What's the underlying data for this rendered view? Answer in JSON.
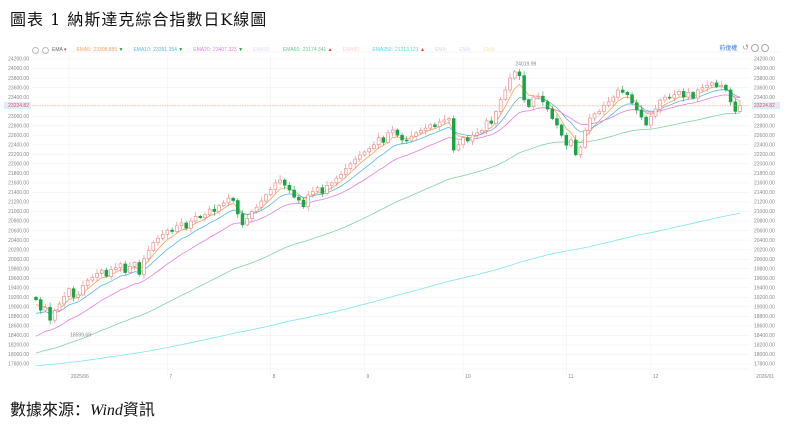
{
  "title": "圖表 1 納斯達克綜合指數日K線圖",
  "source_prefix": "數據來源：",
  "source_name": "Wind",
  "source_suffix": "資訊",
  "toolbar": {
    "adjust_label": "前復權",
    "icons": [
      "undo-icon",
      "zoom-in-icon",
      "close-icon"
    ]
  },
  "legend": {
    "prefix": "EMA",
    "items": [
      {
        "label": "EMA5:",
        "value": "23308.885",
        "trend": "down",
        "color": "#f5a35c"
      },
      {
        "label": "EMA10:",
        "value": "23391.354",
        "trend": "down",
        "color": "#58b6ea"
      },
      {
        "label": "EMA20:",
        "value": "23407.323",
        "trend": "down",
        "color": "#e77ee0"
      },
      {
        "label": "EMA30:",
        "value": "",
        "trend": "",
        "color": "#dcdcf8"
      },
      {
        "label": "EMA60:",
        "value": "23174.341",
        "trend": "up",
        "color": "#6cc993"
      },
      {
        "label": "EMA90:",
        "value": "",
        "trend": "",
        "color": "#f8d0d0"
      },
      {
        "label": "EMA250:",
        "value": "21213.121",
        "trend": "up",
        "color": "#44dcea"
      },
      {
        "label": "EMA:",
        "value": "",
        "trend": "",
        "color": "#d8d8d8"
      },
      {
        "label": "EMA:",
        "value": "",
        "trend": "",
        "color": "#dcd8f0"
      },
      {
        "label": "EMA:",
        "value": "",
        "trend": "",
        "color": "#f6e4b0"
      }
    ]
  },
  "chart_data": {
    "type": "candlestick",
    "ylim": [
      17800,
      24200
    ],
    "ytick_step": 200,
    "x_ticks": [
      "2025/06",
      "7",
      "8",
      "9",
      "10",
      "11",
      "12",
      "2026/01"
    ],
    "x_tick_index": [
      7,
      28,
      50,
      70,
      91,
      113,
      131,
      153
    ],
    "current_price": "23224.82",
    "max_label": "24019.99",
    "min_label": "18599.69",
    "colors": {
      "up": "#ef7f7f",
      "down": "#18a543",
      "current": "#f4a070"
    },
    "ema_seed": {
      "EMA5": 19000,
      "EMA10": 18800,
      "EMA20": 18300,
      "EMA60": 17990,
      "EMA250": 17750
    },
    "closes": [
      19150,
      18930,
      18990,
      18720,
      18920,
      19060,
      19220,
      19380,
      19200,
      19250,
      19450,
      19560,
      19620,
      19700,
      19770,
      19640,
      19780,
      19820,
      19900,
      19720,
      19850,
      19930,
      19680,
      20010,
      20180,
      20350,
      20440,
      20520,
      20610,
      20580,
      20700,
      20760,
      20650,
      20800,
      20900,
      20870,
      20930,
      21050,
      21000,
      21120,
      21180,
      21280,
      21230,
      20950,
      20720,
      20850,
      21000,
      21090,
      21220,
      21350,
      21460,
      21600,
      21660,
      21550,
      21450,
      21300,
      21240,
      21100,
      21350,
      21420,
      21500,
      21380,
      21550,
      21600,
      21700,
      21780,
      21900,
      22000,
      22100,
      22185,
      22250,
      22320,
      22400,
      22550,
      22450,
      22650,
      22710,
      22600,
      22500,
      22480,
      22580,
      22650,
      22700,
      22750,
      22820,
      22780,
      22880,
      22920,
      22950,
      22290,
      22400,
      22550,
      22480,
      22600,
      22650,
      22700,
      22900,
      22850,
      23100,
      23350,
      23550,
      23800,
      23930,
      23850,
      23340,
      23200,
      23400,
      23420,
      23300,
      23150,
      22950,
      22815,
      22600,
      22390,
      22500,
      22190,
      22350,
      22700,
      22960,
      23050,
      23100,
      23230,
      23300,
      23400,
      23550,
      23500,
      23450,
      23280,
      23130,
      22980,
      22815,
      23000,
      23150,
      23340,
      23400,
      23380,
      23450,
      23520,
      23400,
      23500,
      23380,
      23550,
      23600,
      23650,
      23700,
      23620,
      23650,
      23550,
      23300,
      23100,
      23224.82
    ]
  }
}
